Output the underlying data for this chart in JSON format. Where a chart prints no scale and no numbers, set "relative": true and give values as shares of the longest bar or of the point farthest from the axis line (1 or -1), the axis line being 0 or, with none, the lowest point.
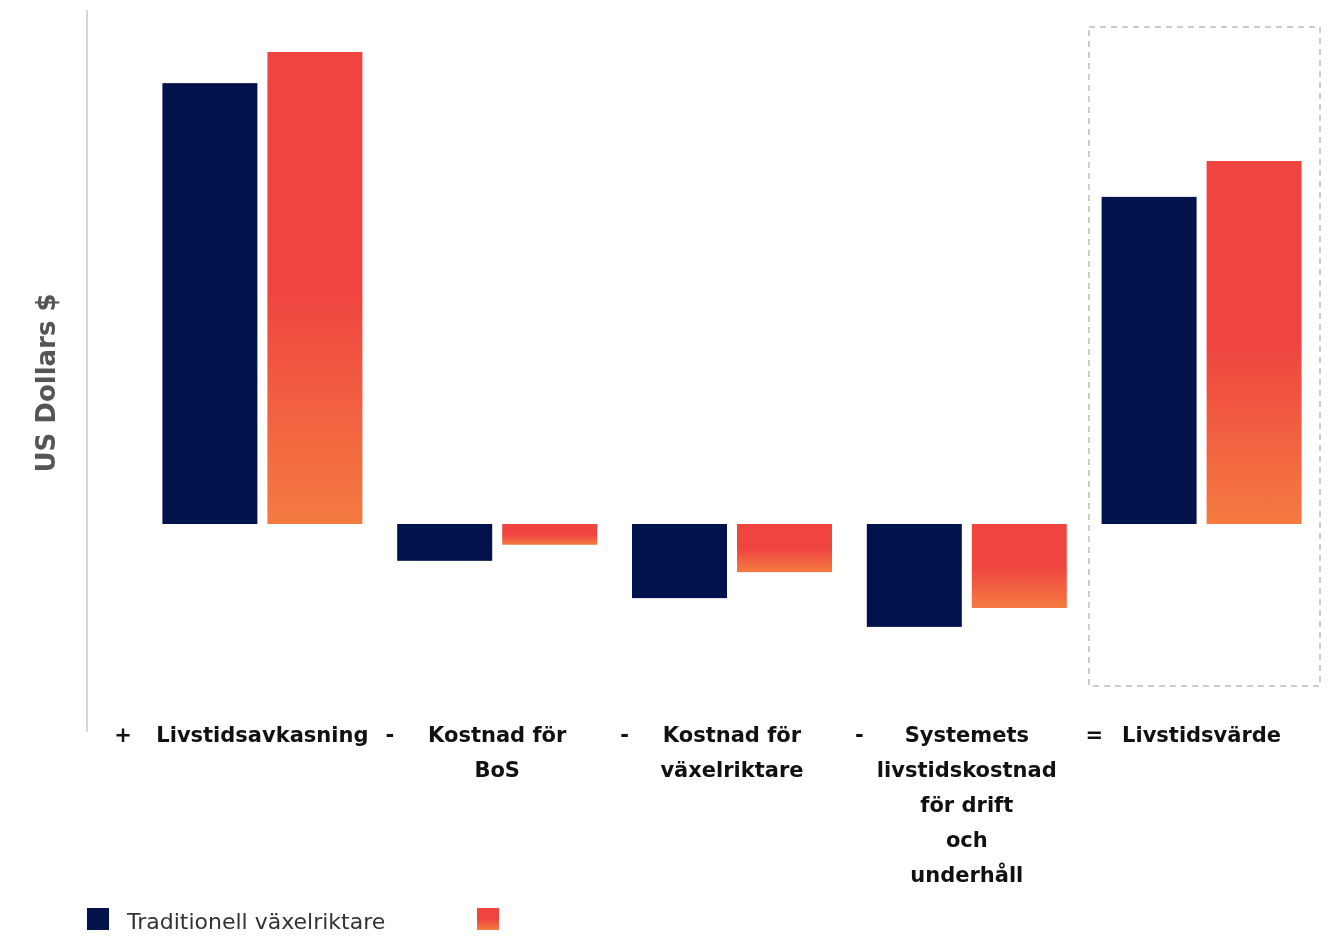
{
  "chart_data": {
    "type": "bar",
    "relative": true,
    "ylabel": "US Dollars $",
    "categories": [
      "Livstidsavkasning",
      "Kostnad för BoS",
      "Kostnad för växelriktare",
      "Systemets livstidskostnad för drift och underhåll",
      "Livstidsvärde"
    ],
    "series": [
      {
        "name": "Traditionell växelriktare",
        "color": "#02124a",
        "values": [
          0.934,
          -0.078,
          -0.157,
          -0.218,
          0.693
        ]
      },
      {
        "color": "#ef4440",
        "values": [
          1,
          -0.044,
          -0.102,
          -0.178,
          0.769
        ]
      }
    ],
    "annotations": [
      "+",
      "-",
      "-",
      "-",
      "="
    ],
    "legend": "bottom left"
  }
}
